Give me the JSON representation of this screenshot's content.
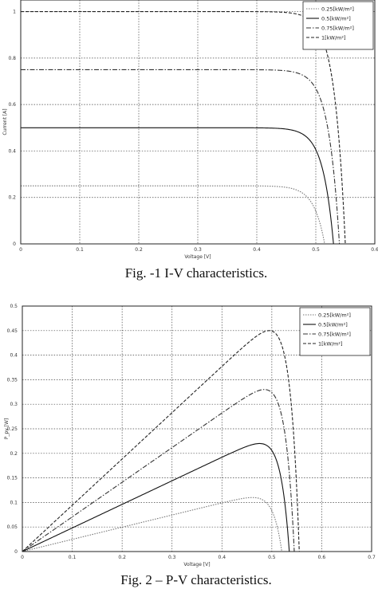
{
  "chart_data": [
    {
      "type": "line",
      "caption": "Fig. -1 I-V characteristics.",
      "xlabel": "Voltage [V]",
      "ylabel": "Current [A]",
      "xlim": [
        0,
        0.6
      ],
      "ylim": [
        0,
        1.05
      ],
      "x_ticks": [
        "0",
        "0.1",
        "0.2",
        "0.3",
        "0.4",
        "0.5",
        "0.6"
      ],
      "y_ticks": [
        "0",
        "0.2",
        "0.4",
        "0.6",
        "0.8",
        "1"
      ],
      "grid": true,
      "legend_position": "top-right",
      "series": [
        {
          "name": "0.25[kW/m²]",
          "color": "#777777",
          "dash": "1.5 1.5",
          "isc": 0.25,
          "voc": 0.515
        },
        {
          "name": "0.5[kW/m²]",
          "color": "#111111",
          "dash": "",
          "isc": 0.5,
          "voc": 0.53
        },
        {
          "name": "0.75[kW/m²]",
          "color": "#333333",
          "dash": "6 2 1.5 2",
          "isc": 0.75,
          "voc": 0.54
        },
        {
          "name": "1[kW/m²]",
          "color": "#222222",
          "dash": "4 2",
          "isc": 1.0,
          "voc": 0.55
        }
      ]
    },
    {
      "type": "line",
      "caption": "Fig. 2 – P-V characteristics.",
      "xlabel": "Voltage [V]",
      "ylabel": "P_pv [W]",
      "xlim": [
        0,
        0.7
      ],
      "ylim": [
        0,
        0.5
      ],
      "x_ticks": [
        "0",
        "0.1",
        "0.2",
        "0.3",
        "0.4",
        "0.5",
        "0.6",
        "0.7"
      ],
      "y_ticks": [
        "0",
        "0.05",
        "0.1",
        "0.15",
        "0.2",
        "0.25",
        "0.3",
        "0.35",
        "0.4",
        "0.45",
        "0.5"
      ],
      "grid": true,
      "legend_position": "top-right",
      "series": [
        {
          "name": "0.25[kW/m²]",
          "color": "#777777",
          "dash": "1.5 1.5",
          "isc": 0.25,
          "voc": 0.52,
          "pmax": 0.11
        },
        {
          "name": "0.5[kW/m²]",
          "color": "#111111",
          "dash": "",
          "isc": 0.5,
          "voc": 0.535,
          "pmax": 0.22
        },
        {
          "name": "0.75[kW/m²]",
          "color": "#333333",
          "dash": "6 2 1.5 2",
          "isc": 0.75,
          "voc": 0.545,
          "pmax": 0.33
        },
        {
          "name": "1[kW/m²]",
          "color": "#222222",
          "dash": "4 2",
          "isc": 1.0,
          "voc": 0.555,
          "pmax": 0.45
        }
      ]
    }
  ]
}
